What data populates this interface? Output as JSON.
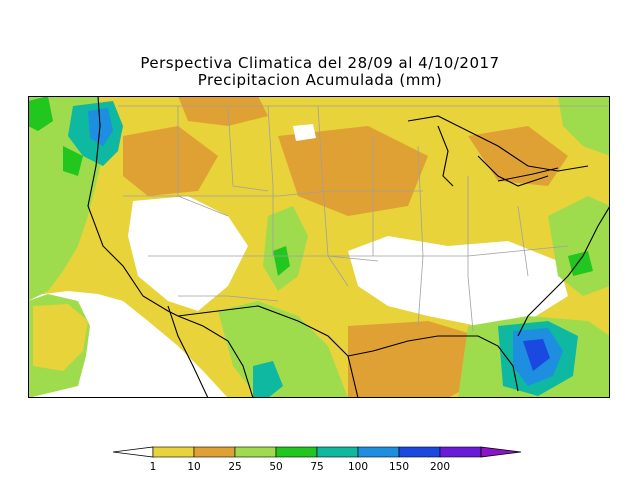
{
  "title_line1": "Perspectiva Climatica del 28/09 al 4/10/2017",
  "title_line2": "Precipitacion Acumulada (mm)",
  "map": {
    "region": "United States and northern Mexico",
    "background_color": "#e8d33a"
  },
  "legend": {
    "levels": [
      {
        "label": "1",
        "color": "#e8d33a"
      },
      {
        "label": "10",
        "color": "#e0a134"
      },
      {
        "label": "25",
        "color": "#9edc4e"
      },
      {
        "label": "50",
        "color": "#21c61e"
      },
      {
        "label": "75",
        "color": "#0fb8a0"
      },
      {
        "label": "100",
        "color": "#1e8ee0"
      },
      {
        "label": "150",
        "color": "#1b48e0"
      },
      {
        "label": "200",
        "color": "#6a1bd8"
      }
    ],
    "low_color": "#ffffff",
    "high_color": "#8c14c8"
  }
}
